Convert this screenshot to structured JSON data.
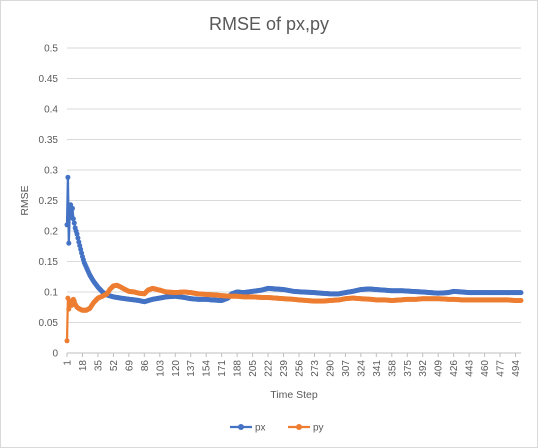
{
  "chart_data": {
    "type": "line",
    "title": "RMSE of px,py",
    "xlabel": "Time Step",
    "ylabel": "RMSE",
    "ylim": [
      0,
      0.5
    ],
    "y_ticks": [
      "0",
      "0.05",
      "0.1",
      "0.15",
      "0.2",
      "0.25",
      "0.3",
      "0.35",
      "0.4",
      "0.45",
      "0.5"
    ],
    "x_range": [
      1,
      500
    ],
    "x_ticks": [
      "1",
      "18",
      "35",
      "52",
      "69",
      "86",
      "103",
      "120",
      "137",
      "154",
      "171",
      "188",
      "205",
      "222",
      "239",
      "256",
      "273",
      "290",
      "307",
      "324",
      "341",
      "358",
      "375",
      "392",
      "409",
      "426",
      "443",
      "460",
      "477",
      "494"
    ],
    "grid": "horizontal",
    "legend": "bottom",
    "series": [
      {
        "name": "px",
        "color": "#4472C4",
        "points": [
          [
            1,
            0.21
          ],
          [
            2,
            0.288
          ],
          [
            3,
            0.18
          ],
          [
            4,
            0.23
          ],
          [
            5,
            0.243
          ],
          [
            6,
            0.222
          ],
          [
            7,
            0.237
          ],
          [
            8,
            0.22
          ],
          [
            9,
            0.213
          ],
          [
            10,
            0.205
          ],
          [
            12,
            0.195
          ],
          [
            14,
            0.182
          ],
          [
            16,
            0.17
          ],
          [
            18,
            0.158
          ],
          [
            20,
            0.148
          ],
          [
            23,
            0.138
          ],
          [
            26,
            0.128
          ],
          [
            30,
            0.118
          ],
          [
            35,
            0.108
          ],
          [
            40,
            0.1
          ],
          [
            45,
            0.095
          ],
          [
            52,
            0.092
          ],
          [
            60,
            0.09
          ],
          [
            70,
            0.088
          ],
          [
            80,
            0.086
          ],
          [
            86,
            0.084
          ],
          [
            95,
            0.088
          ],
          [
            103,
            0.09
          ],
          [
            110,
            0.092
          ],
          [
            120,
            0.093
          ],
          [
            130,
            0.091
          ],
          [
            137,
            0.089
          ],
          [
            145,
            0.088
          ],
          [
            154,
            0.088
          ],
          [
            160,
            0.087
          ],
          [
            171,
            0.086
          ],
          [
            178,
            0.09
          ],
          [
            182,
            0.097
          ],
          [
            188,
            0.1
          ],
          [
            195,
            0.099
          ],
          [
            205,
            0.101
          ],
          [
            215,
            0.103
          ],
          [
            222,
            0.106
          ],
          [
            230,
            0.105
          ],
          [
            239,
            0.104
          ],
          [
            250,
            0.101
          ],
          [
            260,
            0.1
          ],
          [
            273,
            0.099
          ],
          [
            280,
            0.098
          ],
          [
            290,
            0.097
          ],
          [
            300,
            0.097
          ],
          [
            307,
            0.099
          ],
          [
            315,
            0.101
          ],
          [
            324,
            0.104
          ],
          [
            333,
            0.105
          ],
          [
            341,
            0.104
          ],
          [
            350,
            0.103
          ],
          [
            358,
            0.102
          ],
          [
            370,
            0.102
          ],
          [
            380,
            0.101
          ],
          [
            392,
            0.1
          ],
          [
            400,
            0.099
          ],
          [
            409,
            0.098
          ],
          [
            420,
            0.099
          ],
          [
            426,
            0.101
          ],
          [
            435,
            0.1
          ],
          [
            443,
            0.099
          ],
          [
            455,
            0.099
          ],
          [
            465,
            0.099
          ],
          [
            477,
            0.099
          ],
          [
            485,
            0.099
          ],
          [
            494,
            0.099
          ],
          [
            500,
            0.099
          ]
        ]
      },
      {
        "name": "py",
        "color": "#ED7D31",
        "points": [
          [
            1,
            0.02
          ],
          [
            2,
            0.09
          ],
          [
            3,
            0.072
          ],
          [
            4,
            0.08
          ],
          [
            5,
            0.085
          ],
          [
            6,
            0.078
          ],
          [
            7,
            0.082
          ],
          [
            8,
            0.088
          ],
          [
            9,
            0.085
          ],
          [
            10,
            0.08
          ],
          [
            12,
            0.075
          ],
          [
            15,
            0.072
          ],
          [
            18,
            0.07
          ],
          [
            22,
            0.07
          ],
          [
            26,
            0.073
          ],
          [
            30,
            0.082
          ],
          [
            35,
            0.09
          ],
          [
            40,
            0.093
          ],
          [
            45,
            0.097
          ],
          [
            48,
            0.104
          ],
          [
            52,
            0.11
          ],
          [
            56,
            0.111
          ],
          [
            60,
            0.108
          ],
          [
            65,
            0.104
          ],
          [
            69,
            0.101
          ],
          [
            75,
            0.1
          ],
          [
            80,
            0.098
          ],
          [
            86,
            0.097
          ],
          [
            90,
            0.103
          ],
          [
            95,
            0.106
          ],
          [
            103,
            0.103
          ],
          [
            110,
            0.1
          ],
          [
            120,
            0.099
          ],
          [
            130,
            0.1
          ],
          [
            137,
            0.099
          ],
          [
            145,
            0.097
          ],
          [
            154,
            0.096
          ],
          [
            165,
            0.095
          ],
          [
            171,
            0.094
          ],
          [
            180,
            0.093
          ],
          [
            188,
            0.093
          ],
          [
            195,
            0.092
          ],
          [
            205,
            0.092
          ],
          [
            215,
            0.091
          ],
          [
            222,
            0.091
          ],
          [
            230,
            0.09
          ],
          [
            239,
            0.089
          ],
          [
            250,
            0.088
          ],
          [
            256,
            0.087
          ],
          [
            265,
            0.086
          ],
          [
            273,
            0.085
          ],
          [
            282,
            0.085
          ],
          [
            290,
            0.086
          ],
          [
            300,
            0.087
          ],
          [
            307,
            0.089
          ],
          [
            315,
            0.09
          ],
          [
            324,
            0.089
          ],
          [
            335,
            0.088
          ],
          [
            341,
            0.087
          ],
          [
            350,
            0.087
          ],
          [
            358,
            0.086
          ],
          [
            368,
            0.087
          ],
          [
            375,
            0.088
          ],
          [
            385,
            0.088
          ],
          [
            392,
            0.089
          ],
          [
            400,
            0.089
          ],
          [
            409,
            0.089
          ],
          [
            420,
            0.088
          ],
          [
            426,
            0.088
          ],
          [
            435,
            0.087
          ],
          [
            443,
            0.087
          ],
          [
            455,
            0.087
          ],
          [
            465,
            0.087
          ],
          [
            477,
            0.087
          ],
          [
            485,
            0.087
          ],
          [
            494,
            0.086
          ],
          [
            500,
            0.086
          ]
        ]
      }
    ]
  }
}
